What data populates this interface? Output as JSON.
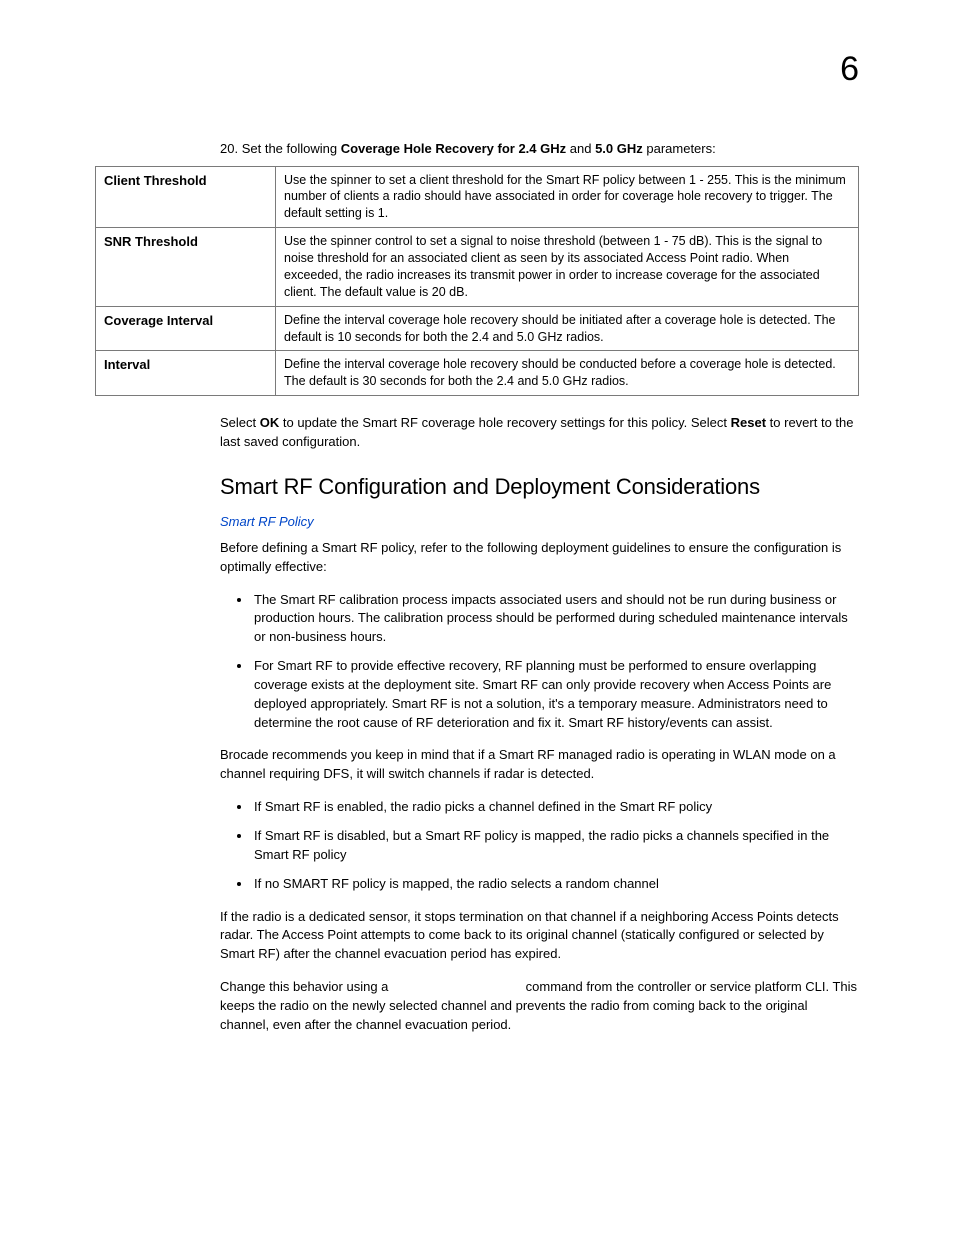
{
  "chapter_number": "6",
  "step": {
    "number": "20.",
    "prefix": "Set the following ",
    "bold1": "Coverage Hole Recovery for 2.4 GHz",
    "mid": " and ",
    "bold2": "5.0 GHz",
    "suffix": " parameters:"
  },
  "table": {
    "rows": [
      {
        "label": "Client Threshold",
        "desc": "Use the spinner to set a client threshold for the Smart RF policy between 1 - 255. This is the minimum number of clients a radio should have associated in order for coverage hole recovery to trigger. The default setting is 1."
      },
      {
        "label": "SNR Threshold",
        "desc": "Use the spinner control to set a signal to noise threshold (between 1 - 75 dB). This is the signal to noise threshold for an associated client as seen by its associated Access Point radio. When exceeded, the radio increases its transmit power in order to increase coverage for the associated client. The default value is 20 dB."
      },
      {
        "label": "Coverage Interval",
        "desc": "Define the interval coverage hole recovery should be initiated after a coverage hole is detected. The default is 10 seconds for both the 2.4 and 5.0 GHz radios."
      },
      {
        "label": "Interval",
        "desc": "Define the interval coverage hole recovery should be conducted before a coverage hole is detected. The default is 30 seconds for both the 2.4 and 5.0 GHz radios."
      }
    ]
  },
  "after_table": {
    "p1a": "Select ",
    "p1b": "OK",
    "p1c": " to update the Smart RF coverage hole recovery settings for this policy. Select ",
    "p1d": "Reset",
    "p1e": " to revert to the last saved configuration."
  },
  "section": {
    "title": "Smart RF Configuration and Deployment Considerations",
    "xref": "Smart RF Policy",
    "intro": "Before defining a Smart RF policy, refer to the following deployment guidelines to ensure the configuration is optimally effective:",
    "bullets1": [
      "The Smart RF calibration process impacts associated users and should not be run during business or production hours. The calibration process should be performed during scheduled maintenance intervals or non-business hours.",
      "For Smart RF to provide effective recovery, RF planning must be performed to ensure overlapping coverage exists at the deployment site. Smart RF can only provide recovery when Access Points are deployed appropriately. Smart RF is not a solution, it's a temporary measure. Administrators need to determine the root cause of RF deterioration and fix it. Smart RF history/events can assist."
    ],
    "mid": "Brocade recommends you keep in mind that if a Smart RF managed radio is operating in WLAN mode on a channel requiring DFS, it will switch channels if radar is detected.",
    "bullets2": [
      "If Smart RF is enabled, the radio picks a channel defined in the Smart RF policy",
      "If Smart RF is disabled, but a Smart RF policy is mapped, the radio picks a channels specified in the Smart RF policy",
      "If no SMART RF policy is mapped, the radio selects a random channel"
    ],
    "p2": "If the radio is a dedicated sensor, it stops termination on that channel if a neighboring Access Points detects radar. The Access Point attempts to come back to its original channel (statically configured or selected by Smart RF) after the channel evacuation period has expired.",
    "p3a": "Change this behavior using a ",
    "p3b": "                                    ",
    "p3c": " command from the controller or service platform CLI. This keeps the radio on the newly selected channel and prevents the radio from coming back to the original channel, even after the channel evacuation period."
  }
}
